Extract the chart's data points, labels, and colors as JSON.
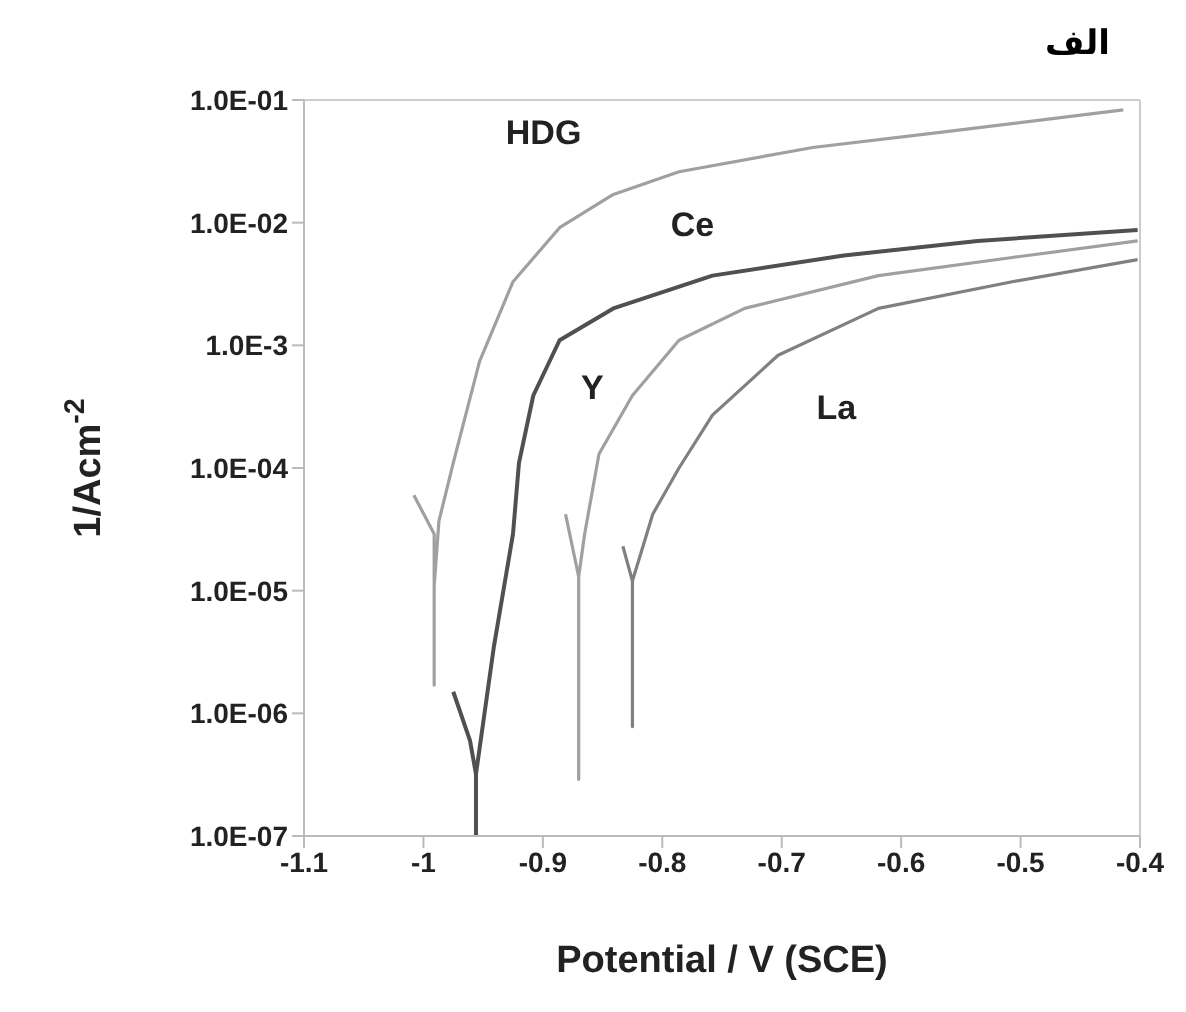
{
  "chart_data": {
    "type": "line",
    "title": "الف",
    "xlabel": "Potential / V (SCE)",
    "ylabel": "1/Acm$^{-2}$",
    "log": "y",
    "marker": "none",
    "line_style": "solid",
    "xlim": [
      -1.1,
      -0.4
    ],
    "xticks": [
      -1.1,
      -1,
      -0.9,
      -0.8,
      -0.7,
      -0.6,
      -0.5,
      -0.4
    ],
    "ylim": [
      1e-07,
      0.1
    ],
    "yticks": [
      {
        "value": 0.1,
        "label": "1.0E-01"
      },
      {
        "value": 0.01,
        "label": "1.0E-02"
      },
      {
        "value": 0.001,
        "label": "1.0E-3"
      },
      {
        "value": 0.0001,
        "label": "1.0E-04"
      },
      {
        "value": 1e-05,
        "label": "1.0E-05"
      },
      {
        "value": 1e-06,
        "label": "1.0E-06"
      },
      {
        "value": 1e-07,
        "label": "1.0E-07"
      }
    ],
    "series": [
      {
        "name": "HDG",
        "color": "#a0a0a0",
        "x": [
          -1.008,
          -0.991,
          -0.991,
          -0.991,
          -0.987,
          -0.975,
          -0.953,
          -0.925,
          -0.886,
          -0.841,
          -0.786,
          -0.674,
          -0.564,
          -0.414
        ],
        "values": [
          6e-05,
          2.9e-05,
          1.7e-06,
          1.1e-05,
          3.7e-05,
          0.00011,
          0.00074,
          0.0033,
          0.0091,
          0.017,
          0.026,
          0.041,
          0.055,
          0.083
        ]
      },
      {
        "name": "Ce",
        "color": "#505050",
        "x": [
          -0.975,
          -0.961,
          -0.956,
          -0.956,
          -0.956,
          -0.941,
          -0.925,
          -0.92,
          -0.908,
          -0.886,
          -0.841,
          -0.758,
          -0.648,
          -0.536,
          -0.402
        ],
        "values": [
          1.5e-06,
          6e-07,
          3.2e-07,
          1e-07,
          3.2e-07,
          3.5e-06,
          2.9e-05,
          0.00011,
          0.00039,
          0.0011,
          0.002,
          0.0037,
          0.0054,
          0.0071,
          0.0087
        ]
      },
      {
        "name": "Y",
        "color": "#a0a0a0",
        "x": [
          -0.881,
          -0.87,
          -0.87,
          -0.87,
          -0.865,
          -0.853,
          -0.825,
          -0.786,
          -0.731,
          -0.619,
          -0.507,
          -0.402
        ],
        "values": [
          4.2e-05,
          1.3e-05,
          2.9e-07,
          1.3e-05,
          2.9e-05,
          0.00013,
          0.00039,
          0.0011,
          0.002,
          0.0037,
          0.0052,
          0.0071
        ]
      },
      {
        "name": "La",
        "color": "#808080",
        "x": [
          -0.833,
          -0.825,
          -0.825,
          -0.825,
          -0.808,
          -0.786,
          -0.758,
          -0.703,
          -0.619,
          -0.507,
          -0.402
        ],
        "values": [
          2.3e-05,
          1.2e-05,
          7.8e-07,
          1.2e-05,
          4.2e-05,
          0.0001,
          0.00027,
          0.00083,
          0.002,
          0.0033,
          0.005
        ]
      }
    ]
  }
}
